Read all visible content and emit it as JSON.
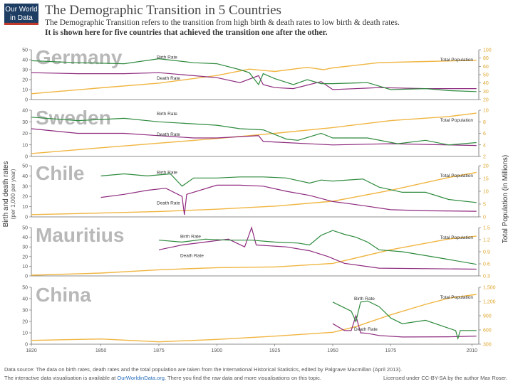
{
  "header": {
    "logo_line1": "Our World",
    "logo_line2": "in Data",
    "title": "The Demographic Transition in 5 Countries",
    "subtitle_line1": "The Demographic Transition refers to the transition from high birth & death rates to low birth & death rates.",
    "subtitle_line2": "It is shown here for five countries that achieved the transition one after the other."
  },
  "footer": {
    "source": "Data source: The data on birth rates, death rates and the total population are taken from the International Historical Statistics, edited by Palgrave Macmillan (April 2013).",
    "interactive_prefix": "The interactive data visualisation is available at ",
    "interactive_link": "OurWorldinData.org",
    "interactive_suffix": ". There you find the raw data and more visualisations on this topic.",
    "license": "Licensed under CC-BY-SA by the author Max Roser."
  },
  "colors": {
    "birth": "#2e8b3e",
    "death": "#8e2b7e",
    "population": "#f0b541",
    "country_label": "#b8b8b8",
    "axis": "#666666"
  },
  "chart_data": {
    "type": "line",
    "x_range": [
      1820,
      2013
    ],
    "x_ticks": [
      1820,
      1850,
      1875,
      1900,
      1925,
      1950,
      1975,
      2010
    ],
    "ylabel_left": "Birth and death rates",
    "ylabel_left_sub": "(per 1,000 per year)",
    "ylabel_right": "Total Population (in Millions)",
    "series_labels": {
      "birth": "Birth Rate",
      "death": "Death Rate",
      "population": "Total Population"
    },
    "panels": [
      {
        "country": "Germany",
        "rate_ticks": [
          0,
          10,
          20,
          30,
          40,
          50
        ],
        "rate_range": [
          0,
          50
        ],
        "pop_ticks": [
          "20",
          "30",
          "40",
          "50",
          "60",
          "80",
          "100"
        ],
        "pop_range": [
          15,
          100
        ],
        "birth": [
          [
            1820,
            39
          ],
          [
            1840,
            37
          ],
          [
            1860,
            36
          ],
          [
            1875,
            41
          ],
          [
            1890,
            37
          ],
          [
            1900,
            36
          ],
          [
            1910,
            30
          ],
          [
            1914,
            27
          ],
          [
            1918,
            15
          ],
          [
            1920,
            26
          ],
          [
            1925,
            21
          ],
          [
            1933,
            15
          ],
          [
            1939,
            20
          ],
          [
            1945,
            16
          ],
          [
            1950,
            16
          ],
          [
            1965,
            17
          ],
          [
            1975,
            10
          ],
          [
            1990,
            11
          ],
          [
            2000,
            9
          ],
          [
            2012,
            8
          ]
        ],
        "death": [
          [
            1820,
            27
          ],
          [
            1840,
            26
          ],
          [
            1860,
            26
          ],
          [
            1875,
            27
          ],
          [
            1890,
            24
          ],
          [
            1900,
            22
          ],
          [
            1910,
            17
          ],
          [
            1918,
            24
          ],
          [
            1920,
            15
          ],
          [
            1925,
            12
          ],
          [
            1933,
            11
          ],
          [
            1945,
            18
          ],
          [
            1950,
            10
          ],
          [
            1970,
            12
          ],
          [
            1990,
            11
          ],
          [
            2012,
            11
          ]
        ],
        "population": [
          [
            1820,
            25
          ],
          [
            1850,
            35
          ],
          [
            1875,
            43
          ],
          [
            1900,
            56
          ],
          [
            1914,
            67
          ],
          [
            1925,
            63
          ],
          [
            1939,
            70
          ],
          [
            1946,
            66
          ],
          [
            1950,
            69
          ],
          [
            1970,
            78
          ],
          [
            1990,
            80
          ],
          [
            2012,
            82
          ]
        ]
      },
      {
        "country": "Sweden",
        "rate_ticks": [
          0,
          10,
          20,
          30,
          40
        ],
        "rate_range": [
          0,
          40
        ],
        "pop_ticks": [
          "2",
          "4",
          "6",
          "8",
          "10"
        ],
        "pop_range": [
          2,
          10
        ],
        "birth": [
          [
            1820,
            34
          ],
          [
            1840,
            31
          ],
          [
            1860,
            33
          ],
          [
            1875,
            30
          ],
          [
            1900,
            27
          ],
          [
            1910,
            24
          ],
          [
            1920,
            23
          ],
          [
            1930,
            15
          ],
          [
            1935,
            14
          ],
          [
            1945,
            20
          ],
          [
            1950,
            16
          ],
          [
            1965,
            16
          ],
          [
            1978,
            11
          ],
          [
            1990,
            14
          ],
          [
            2000,
            10
          ],
          [
            2012,
            12
          ]
        ],
        "death": [
          [
            1820,
            24
          ],
          [
            1840,
            20
          ],
          [
            1860,
            20
          ],
          [
            1875,
            18
          ],
          [
            1890,
            16
          ],
          [
            1900,
            16
          ],
          [
            1918,
            18
          ],
          [
            1920,
            13
          ],
          [
            1950,
            10
          ],
          [
            1975,
            11
          ],
          [
            2012,
            9.5
          ]
        ],
        "population": [
          [
            1820,
            2.5
          ],
          [
            1850,
            3.5
          ],
          [
            1875,
            4.3
          ],
          [
            1900,
            5.1
          ],
          [
            1925,
            6.0
          ],
          [
            1950,
            7.0
          ],
          [
            1975,
            8.2
          ],
          [
            2000,
            8.9
          ],
          [
            2012,
            9.5
          ]
        ]
      },
      {
        "country": "Chile",
        "rate_ticks": [
          0,
          10,
          20,
          30,
          40,
          50
        ],
        "rate_range": [
          0,
          50
        ],
        "pop_ticks": [
          "0",
          "5",
          "10",
          "15",
          "20"
        ],
        "pop_range": [
          0,
          20
        ],
        "birth": [
          [
            1850,
            40
          ],
          [
            1860,
            42
          ],
          [
            1870,
            40
          ],
          [
            1880,
            42
          ],
          [
            1885,
            30
          ],
          [
            1890,
            38
          ],
          [
            1900,
            38
          ],
          [
            1910,
            39
          ],
          [
            1920,
            39
          ],
          [
            1930,
            38
          ],
          [
            1940,
            33
          ],
          [
            1945,
            36
          ],
          [
            1950,
            35
          ],
          [
            1963,
            37
          ],
          [
            1970,
            29
          ],
          [
            1980,
            24
          ],
          [
            1990,
            24
          ],
          [
            2000,
            17
          ],
          [
            2012,
            14
          ]
        ],
        "death": [
          [
            1850,
            19
          ],
          [
            1860,
            22
          ],
          [
            1870,
            26
          ],
          [
            1878,
            28
          ],
          [
            1885,
            20
          ],
          [
            1886,
            2
          ],
          [
            1887,
            22
          ],
          [
            1900,
            31
          ],
          [
            1910,
            31
          ],
          [
            1920,
            30
          ],
          [
            1930,
            25
          ],
          [
            1940,
            21
          ],
          [
            1950,
            15
          ],
          [
            1960,
            12
          ],
          [
            1975,
            7
          ],
          [
            1990,
            6
          ],
          [
            2012,
            5.5
          ]
        ],
        "population": [
          [
            1820,
            0.9
          ],
          [
            1850,
            1.5
          ],
          [
            1875,
            2.1
          ],
          [
            1900,
            3.0
          ],
          [
            1925,
            4.2
          ],
          [
            1950,
            6.1
          ],
          [
            1975,
            10.4
          ],
          [
            2000,
            15.4
          ],
          [
            2012,
            17.4
          ]
        ]
      },
      {
        "country": "Mauritius",
        "rate_ticks": [
          0,
          10,
          20,
          30,
          40,
          50
        ],
        "rate_range": [
          0,
          50
        ],
        "pop_ticks": [
          "0.3",
          "0.6",
          "0.9",
          "1.2",
          "1.5"
        ],
        "pop_range": [
          0.15,
          1.5
        ],
        "birth": [
          [
            1875,
            37
          ],
          [
            1885,
            35
          ],
          [
            1895,
            38
          ],
          [
            1905,
            37
          ],
          [
            1915,
            37
          ],
          [
            1925,
            35
          ],
          [
            1935,
            34
          ],
          [
            1940,
            32
          ],
          [
            1945,
            42
          ],
          [
            1950,
            47
          ],
          [
            1955,
            43
          ],
          [
            1960,
            40
          ],
          [
            1965,
            35
          ],
          [
            1970,
            27
          ],
          [
            1980,
            25
          ],
          [
            1990,
            21
          ],
          [
            2000,
            17
          ],
          [
            2012,
            12
          ]
        ],
        "death": [
          [
            1875,
            27
          ],
          [
            1885,
            32
          ],
          [
            1895,
            35
          ],
          [
            1905,
            38
          ],
          [
            1912,
            30
          ],
          [
            1915,
            50
          ],
          [
            1917,
            32
          ],
          [
            1930,
            30
          ],
          [
            1940,
            26
          ],
          [
            1948,
            20
          ],
          [
            1955,
            13
          ],
          [
            1970,
            8
          ],
          [
            2012,
            7
          ]
        ],
        "population": [
          [
            1820,
            0.17
          ],
          [
            1850,
            0.23
          ],
          [
            1875,
            0.32
          ],
          [
            1900,
            0.38
          ],
          [
            1925,
            0.4
          ],
          [
            1950,
            0.5
          ],
          [
            1975,
            0.88
          ],
          [
            2000,
            1.18
          ],
          [
            2012,
            1.26
          ]
        ]
      },
      {
        "country": "China",
        "rate_ticks": [
          0,
          10,
          20,
          30,
          40,
          50
        ],
        "rate_range": [
          0,
          50
        ],
        "pop_ticks": [
          "300",
          "600",
          "900",
          "1,200",
          "1,500"
        ],
        "pop_range": [
          300,
          1500
        ],
        "birth": [
          [
            1950,
            37
          ],
          [
            1955,
            32
          ],
          [
            1958,
            29
          ],
          [
            1960,
            20
          ],
          [
            1962,
            37
          ],
          [
            1965,
            38
          ],
          [
            1970,
            33
          ],
          [
            1975,
            23
          ],
          [
            1980,
            18
          ],
          [
            1990,
            21
          ],
          [
            2000,
            14
          ],
          [
            2003,
            12
          ],
          [
            2004,
            5
          ],
          [
            2005,
            12
          ],
          [
            2012,
            12
          ]
        ],
        "death": [
          [
            1950,
            18
          ],
          [
            1955,
            12
          ],
          [
            1958,
            12
          ],
          [
            1960,
            25
          ],
          [
            1962,
            10
          ],
          [
            1965,
            9.5
          ],
          [
            1970,
            7.6
          ],
          [
            1980,
            6.3
          ],
          [
            2000,
            6.5
          ],
          [
            2012,
            7.1
          ]
        ],
        "population": [
          [
            1820,
            380
          ],
          [
            1850,
            410
          ],
          [
            1875,
            350
          ],
          [
            1900,
            400
          ],
          [
            1925,
            470
          ],
          [
            1950,
            550
          ],
          [
            1960,
            670
          ],
          [
            1975,
            920
          ],
          [
            1990,
            1140
          ],
          [
            2000,
            1270
          ],
          [
            2012,
            1350
          ]
        ]
      }
    ]
  }
}
